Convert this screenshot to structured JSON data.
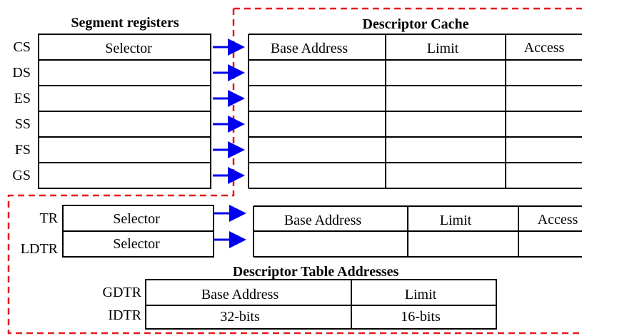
{
  "colors": {
    "dashed_border": "#e41a1c",
    "arrow": "#0000ee",
    "line": "#000000"
  },
  "segment_registers": {
    "title": "Segment registers",
    "rows": [
      "CS",
      "DS",
      "ES",
      "SS",
      "FS",
      "GS"
    ],
    "first_cell": "Selector"
  },
  "descriptor_cache": {
    "title": "Descriptor Cache",
    "columns": [
      "Base Address",
      "Limit",
      "Access"
    ]
  },
  "system_registers": {
    "rows": [
      {
        "name": "TR",
        "selector": "Selector"
      },
      {
        "name": "LDTR",
        "selector": "Selector"
      }
    ],
    "columns": [
      "Base Address",
      "Limit",
      "Access"
    ]
  },
  "descriptor_table": {
    "title": "Descriptor Table Addresses",
    "rows": [
      "GDTR",
      "IDTR"
    ],
    "header": [
      "Base Address",
      "Limit"
    ],
    "values": [
      "32-bits",
      "16-bits"
    ]
  }
}
